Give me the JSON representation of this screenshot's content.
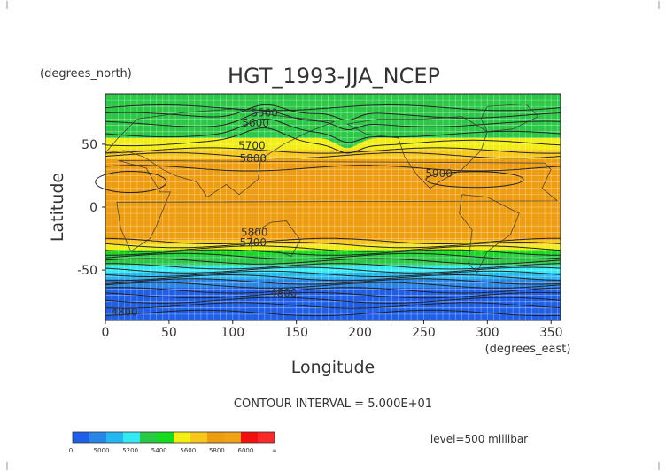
{
  "chart_data": {
    "type": "heatmap",
    "title": "HGT_1993-JJA_NCEP",
    "xlabel": "Longitude",
    "ylabel": "Latitude",
    "x_units": "(degrees_east)",
    "y_units": "(degrees_north)",
    "xlim": [
      0,
      357.5
    ],
    "ylim": [
      -90,
      90
    ],
    "x_ticks": [
      0,
      50,
      100,
      150,
      200,
      250,
      300,
      350
    ],
    "y_ticks": [
      50,
      0,
      -50
    ],
    "contour_interval_text": "CONTOUR INTERVAL = 5.000E+01",
    "level_text": "level=500 millibar",
    "grid": true,
    "colorbar": {
      "labels": [
        "0",
        "5000",
        "5200",
        "5400",
        "5600",
        "5800",
        "6000",
        "∞"
      ],
      "colors": [
        "#1f5fe8",
        "#2a86e6",
        "#25b8f0",
        "#33eaf3",
        "#2bc846",
        "#13dc1f",
        "#f2ee12",
        "#f7c81b",
        "#ee9d10",
        "#f2a216",
        "#f51010",
        "#fb2a2a"
      ]
    },
    "field_bands": [
      {
        "lat": [
          -90,
          -80
        ],
        "color": "#1f5fe8"
      },
      {
        "lat": [
          -80,
          -64
        ],
        "color": "#1f5fe8"
      },
      {
        "lat": [
          -64,
          -57
        ],
        "color": "#2a86e6"
      },
      {
        "lat": [
          -57,
          -52
        ],
        "color": "#25b8f0"
      },
      {
        "lat": [
          -52,
          -46
        ],
        "color": "#33eaf3"
      },
      {
        "lat": [
          -46,
          -38
        ],
        "color": "#2bc846"
      },
      {
        "lat": [
          -38,
          -34
        ],
        "color": "#13dc1f"
      },
      {
        "lat": [
          -34,
          -30
        ],
        "color": "#f2ee12"
      },
      {
        "lat": [
          -30,
          -26
        ],
        "color": "#f7c81b"
      },
      {
        "lat": [
          -26,
          38
        ],
        "color": "#ee9d10"
      },
      {
        "lat": [
          38,
          46
        ],
        "color": "#f7c81b"
      },
      {
        "lat": [
          46,
          55
        ],
        "color": "#f2ee12"
      },
      {
        "lat": [
          55,
          90
        ],
        "color": "#2bc846"
      }
    ],
    "contour_labels": [
      {
        "text": "5500",
        "lon": 125,
        "lat": 72
      },
      {
        "text": "5600",
        "lon": 118,
        "lat": 64
      },
      {
        "text": "5700",
        "lon": 115,
        "lat": 46
      },
      {
        "text": "5800",
        "lon": 116,
        "lat": 36
      },
      {
        "text": "5900",
        "lon": 262,
        "lat": 24
      },
      {
        "text": "5800",
        "lon": 117,
        "lat": -23
      },
      {
        "text": "5700",
        "lon": 116,
        "lat": -31
      },
      {
        "text": "4800",
        "lon": 140,
        "lat": -71
      },
      {
        "text": "4800",
        "lon": 15,
        "lat": -86
      }
    ]
  }
}
